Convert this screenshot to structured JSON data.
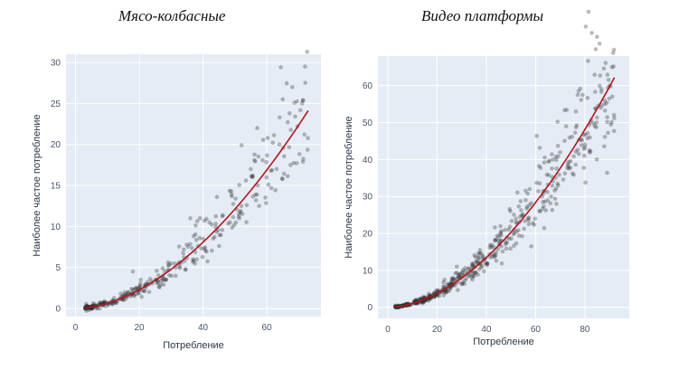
{
  "chart_data": [
    {
      "type": "scatter",
      "title": "Мясо-колбасные",
      "xlabel": "Потребление",
      "ylabel": "Наиболее частое потребление",
      "xlim": [
        -3,
        77
      ],
      "ylim": [
        -1,
        31
      ],
      "xticks": [
        0,
        20,
        40,
        60
      ],
      "yticks": [
        0,
        5,
        10,
        15,
        20,
        25,
        30
      ],
      "point_color": "#2b2b2b",
      "line_color": "#b3171d",
      "trend": {
        "a": 0.0098,
        "b": 1.82,
        "x_min": 3,
        "x_max": 73
      },
      "scatter": {
        "n": 330,
        "x_min": 3,
        "x_max": 73,
        "noise": 0.16,
        "seed": 7
      },
      "annotations": [
        {
          "x": 72,
          "y": 29.5
        },
        {
          "x": 68,
          "y": 27.0
        },
        {
          "x": 65,
          "y": 25.5
        },
        {
          "x": 57,
          "y": 22.0
        },
        {
          "x": 55,
          "y": 17.0
        },
        {
          "x": 52,
          "y": 12.5
        },
        {
          "x": 36,
          "y": 11.0
        },
        {
          "x": 42,
          "y": 10.5
        },
        {
          "x": 18,
          "y": 4.5
        }
      ]
    },
    {
      "type": "scatter",
      "title": "Видео платформы",
      "xlabel": "Потребление",
      "ylabel": "Наиболее частое потребление",
      "xlim": [
        -4,
        98
      ],
      "ylim": [
        -3,
        68
      ],
      "xticks": [
        0,
        20,
        40,
        60,
        80
      ],
      "yticks": [
        0,
        10,
        20,
        30,
        40,
        50,
        60
      ],
      "point_color": "#2b2b2b",
      "line_color": "#b3171d",
      "trend": {
        "a": 0.0155,
        "b": 1.835,
        "x_min": 3,
        "x_max": 92
      },
      "scatter": {
        "n": 520,
        "x_min": 3,
        "x_max": 92,
        "noise": 0.17,
        "seed": 11
      },
      "annotations": [
        {
          "x": 91,
          "y": 65.0
        },
        {
          "x": 90,
          "y": 60.0
        },
        {
          "x": 88,
          "y": 56.0
        },
        {
          "x": 82,
          "y": 46.0
        },
        {
          "x": 67,
          "y": 40.0
        },
        {
          "x": 56,
          "y": 29.0
        },
        {
          "x": 52,
          "y": 24.0
        },
        {
          "x": 45,
          "y": 19.0
        },
        {
          "x": 28,
          "y": 11.0
        }
      ]
    }
  ]
}
